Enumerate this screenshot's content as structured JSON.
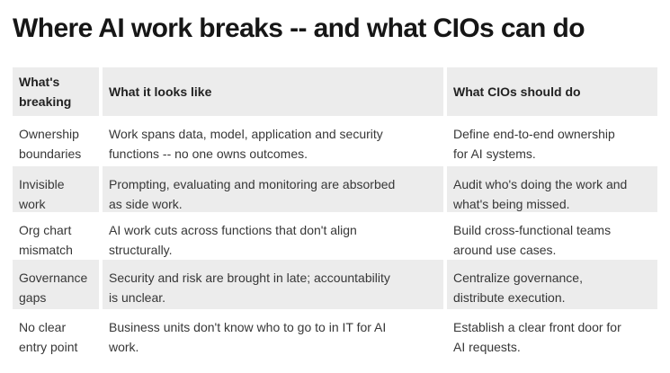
{
  "page": {
    "title": "Where AI work breaks -- and what CIOs can do"
  },
  "colors": {
    "background": "#ffffff",
    "stripe": "#ececec",
    "title_text": "#161616",
    "header_text": "#222222",
    "body_text": "#373737"
  },
  "chart_data": {
    "type": "table",
    "title": "Where AI work breaks -- and what CIOs can do",
    "columns": [
      "What's\nbreaking",
      "What it looks like",
      "What CIOs should do"
    ],
    "rows": [
      [
        "Ownership\nboundaries",
        "Work spans data, model, application and security\nfunctions -- no one owns outcomes.",
        "Define end-to-end ownership\nfor AI systems."
      ],
      [
        "Invisible\nwork",
        "Prompting, evaluating and monitoring are absorbed\nas side work.",
        "Audit who's doing the work and\nwhat's being missed."
      ],
      [
        "Org chart\nmismatch",
        "AI work cuts across functions that don't align\nstructurally.",
        "Build cross-functional teams\naround use cases."
      ],
      [
        "Governance\ngaps",
        "Security and risk are brought in late; accountability\nis unclear.",
        "Centralize governance,\ndistribute execution."
      ],
      [
        "No clear\nentry point",
        "Business units don't know who to go to in IT for AI\nwork.",
        "Establish a clear front door for\nAI requests."
      ]
    ],
    "layout": {
      "striped": true,
      "stripe_rows": [
        1,
        3
      ],
      "header_shaded": true,
      "legend": "none",
      "grid": "off"
    }
  }
}
